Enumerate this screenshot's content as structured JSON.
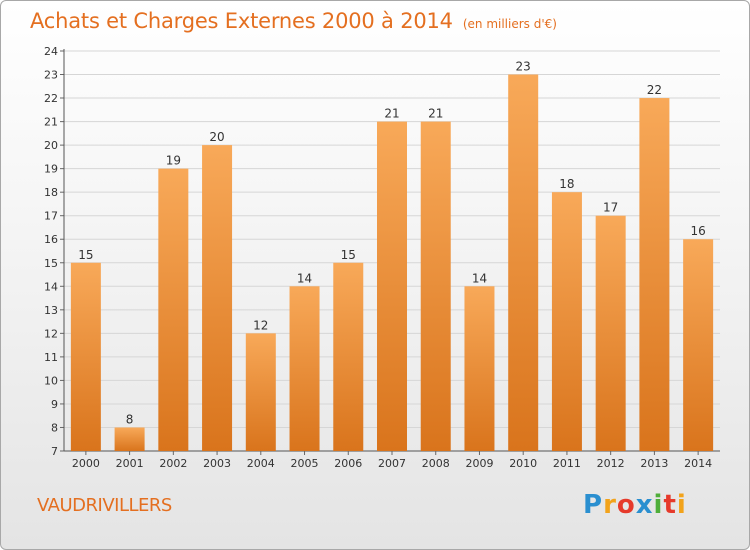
{
  "header": {
    "title": "Achats et Charges Externes 2000 à 2014",
    "subtitle": "(en milliers d'€)"
  },
  "footer": {
    "town": "VAUDRIVILLERS",
    "logo_letters": [
      {
        "ch": "P",
        "color": "#2a8fd0"
      },
      {
        "ch": "r",
        "color": "#f2a31b"
      },
      {
        "ch": "o",
        "color": "#e63a2b"
      },
      {
        "ch": "x",
        "color": "#2a8fd0"
      },
      {
        "ch": "i",
        "color": "#4fae3a"
      },
      {
        "ch": "t",
        "color": "#e63a2b"
      },
      {
        "ch": "i",
        "color": "#f2a31b"
      }
    ]
  },
  "colors": {
    "accent": "#e46f20",
    "bar_light": "#f7a553",
    "bar_dark": "#dd7c24"
  },
  "chart_data": {
    "type": "bar",
    "title": "Achats et Charges Externes 2000 à 2014",
    "subtitle": "(en milliers d'€)",
    "xlabel": "",
    "ylabel": "",
    "categories": [
      "2000",
      "2001",
      "2002",
      "2003",
      "2004",
      "2005",
      "2006",
      "2007",
      "2008",
      "2009",
      "2010",
      "2011",
      "2012",
      "2013",
      "2014"
    ],
    "values": [
      15,
      8,
      19,
      20,
      12,
      14,
      15,
      21,
      21,
      14,
      23,
      18,
      17,
      22,
      16
    ],
    "ylim": [
      7,
      24
    ],
    "yticks": [
      7,
      8,
      9,
      10,
      11,
      12,
      13,
      14,
      15,
      16,
      17,
      18,
      19,
      20,
      21,
      22,
      23,
      24
    ],
    "grid": true,
    "legend": "none"
  }
}
